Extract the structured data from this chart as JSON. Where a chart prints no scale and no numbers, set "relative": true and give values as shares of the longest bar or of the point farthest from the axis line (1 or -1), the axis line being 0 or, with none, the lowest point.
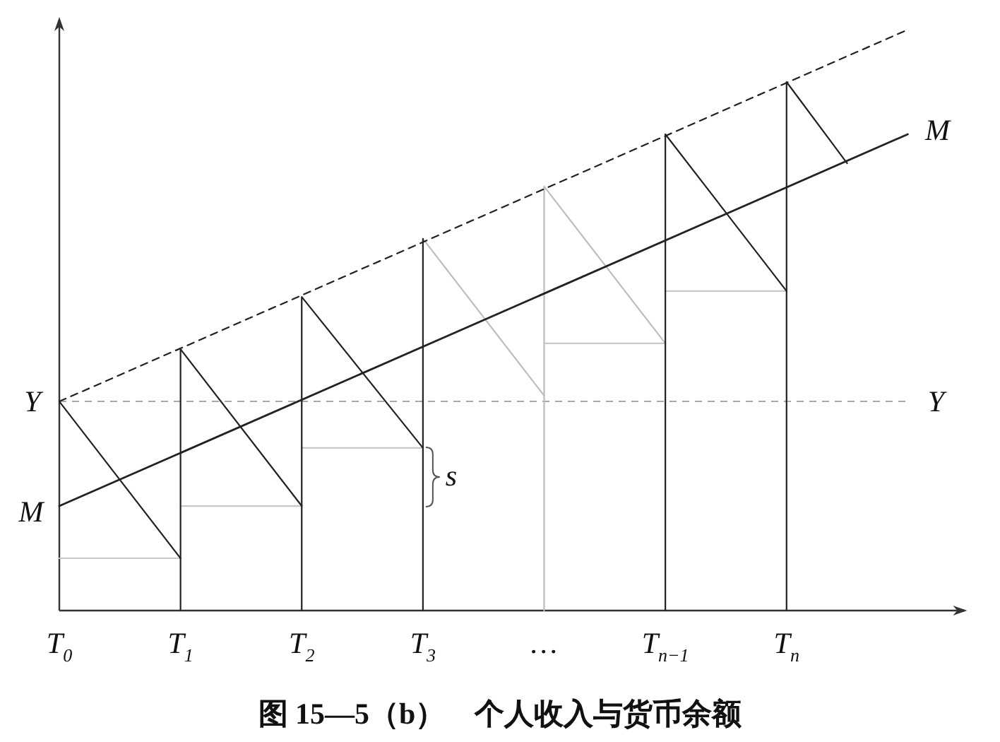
{
  "chart_data": {
    "type": "line",
    "title": "图 15—5（b）　个人收入与货币余额",
    "relative": true,
    "tick_labels": "x",
    "xlim": [
      0,
      7
    ],
    "xticks": [
      {
        "value": 0,
        "label": "T$_{0}$"
      },
      {
        "value": 1,
        "label": "T$_{1}$"
      },
      {
        "value": 2,
        "label": "T$_{2}$"
      },
      {
        "value": 3,
        "label": "T$_{3}$"
      },
      {
        "value": 4,
        "label": "…"
      },
      {
        "value": 5,
        "label": "T$_{n−1}$"
      },
      {
        "value": 6,
        "label": "T$_{n}$"
      }
    ],
    "series": [
      {
        "color": "#c8c8c8",
        "x": [
          0,
          1
        ],
        "values": [
          0.09,
          0.09
        ]
      },
      {
        "color": "#c8c8c8",
        "x": [
          1,
          2
        ],
        "values": [
          0.18,
          0.18
        ]
      },
      {
        "color": "#c8c8c8",
        "x": [
          2,
          3
        ],
        "values": [
          0.28,
          0.28
        ]
      },
      {
        "color": "#c8c8c8",
        "x": [
          4,
          5
        ],
        "values": [
          0.46,
          0.46
        ]
      },
      {
        "color": "#c8c8c8",
        "x": [
          5,
          6
        ],
        "values": [
          0.55,
          0.55
        ]
      },
      {
        "color": "#bdbdbd",
        "x": [
          3,
          4
        ],
        "values": [
          0.64,
          0.37
        ]
      },
      {
        "color": "#bdbdbd",
        "x": [
          4,
          4,
          5
        ],
        "values": [
          0,
          0.73,
          0.46
        ]
      },
      {
        "color": "#222222",
        "x": [
          0,
          1
        ],
        "values": [
          0.36,
          0.09
        ]
      },
      {
        "color": "#222222",
        "x": [
          1,
          1,
          2
        ],
        "values": [
          0,
          0.45,
          0.18
        ]
      },
      {
        "color": "#222222",
        "x": [
          2,
          2,
          3
        ],
        "values": [
          0,
          0.54,
          0.28
        ]
      },
      {
        "color": "#222222",
        "x": [
          3,
          3
        ],
        "values": [
          0,
          0.64
        ]
      },
      {
        "color": "#222222",
        "x": [
          5,
          5,
          6
        ],
        "values": [
          0,
          0.82,
          0.55
        ]
      },
      {
        "color": "#222222",
        "x": [
          6,
          6,
          6.5
        ],
        "values": [
          0,
          0.91,
          0.77
        ]
      },
      {
        "name": "M",
        "color": "#222222",
        "x": [
          0,
          7
        ],
        "values": [
          0.18,
          0.82
        ]
      },
      {
        "color": "#222222",
        "line_style": "dashed",
        "x": [
          0,
          7
        ],
        "values": [
          0.36,
          1.0
        ]
      }
    ],
    "ref_lines": [
      {
        "axis": "y",
        "value": 0.36,
        "label": "Y",
        "color": "#aaaaaa",
        "line_style": "dashed"
      }
    ],
    "annotations": [
      {
        "text": "s",
        "x": 3,
        "y": 0.23
      }
    ]
  }
}
